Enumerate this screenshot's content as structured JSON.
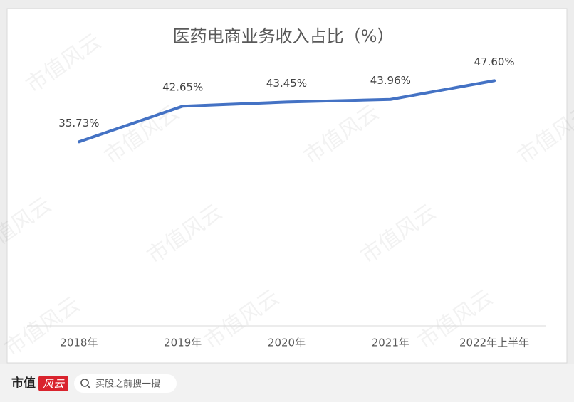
{
  "chart_data": {
    "type": "line",
    "title": "医药电商业务收入占比（%）",
    "categories": [
      "2018年",
      "2019年",
      "2020年",
      "2021年",
      "2022年上半年"
    ],
    "values": [
      35.73,
      42.65,
      43.45,
      43.96,
      47.6
    ],
    "value_labels": [
      "35.73%",
      "42.65%",
      "43.45%",
      "43.96%",
      "47.60%"
    ],
    "color": "#4472c4",
    "ylim": [
      0,
      50
    ]
  },
  "watermark": "市值风云",
  "footer": {
    "brand": "市值",
    "logo": "风云",
    "search": "买股之前搜一搜"
  }
}
